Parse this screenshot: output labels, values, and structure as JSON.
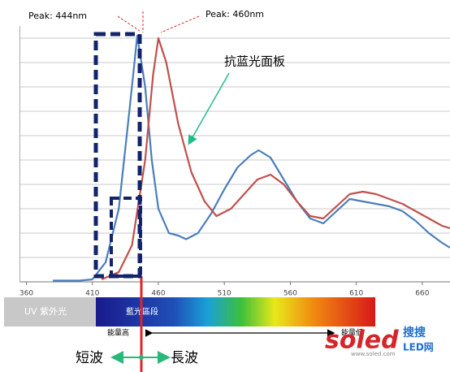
{
  "chart_data": {
    "type": "line",
    "xlim": [
      355,
      681
    ],
    "xticks": [
      360,
      410,
      460,
      510,
      560,
      610,
      660
    ],
    "ylim": [
      0,
      10.5
    ],
    "yticks": [
      0,
      1,
      2,
      3,
      4,
      5,
      6,
      7,
      8,
      9,
      10
    ],
    "grid": true,
    "series": [
      {
        "name": "Peak: 444nm",
        "color": "#4a7ebb",
        "x": [
          380,
          400,
          410,
          420,
          430,
          438,
          444,
          450,
          455,
          460,
          468,
          475,
          481,
          490,
          500,
          510,
          520,
          530,
          536,
          545,
          555,
          565,
          575,
          585,
          595,
          605,
          615,
          625,
          635,
          645,
          655,
          665,
          675,
          681
        ],
        "values": [
          0.05,
          0.05,
          0.1,
          0.8,
          3,
          7,
          10.1,
          8,
          5,
          3,
          2,
          1.9,
          1.75,
          2.0,
          2.8,
          3.8,
          4.7,
          5.2,
          5.4,
          5.1,
          4.2,
          3.3,
          2.6,
          2.4,
          2.9,
          3.4,
          3.3,
          3.2,
          3.1,
          2.9,
          2.5,
          2.0,
          1.6,
          1.4
        ]
      },
      {
        "name": "Peak: 460nm",
        "color": "#c0504d",
        "x": [
          417,
          430,
          440,
          450,
          456,
          460,
          466,
          475,
          485,
          495,
          504,
          515,
          525,
          535,
          545,
          555,
          565,
          575,
          585,
          595,
          605,
          615,
          625,
          635,
          645,
          655,
          665,
          675,
          681
        ],
        "values": [
          0.1,
          0.4,
          1.5,
          5,
          8.5,
          10,
          9,
          6.5,
          4.5,
          3.3,
          2.7,
          3.0,
          3.6,
          4.2,
          4.4,
          4.0,
          3.3,
          2.7,
          2.6,
          3.1,
          3.6,
          3.7,
          3.6,
          3.4,
          3.2,
          2.9,
          2.6,
          2.3,
          2.2
        ]
      }
    ],
    "annotations": {
      "panel": "抗蓝光面板",
      "uv": "UV 紫外光",
      "blue_zone": "藍光區段",
      "high_energy": "能量高",
      "low_energy": "能量低",
      "short_wave": "短波",
      "long_wave": "長波"
    },
    "watermark": {
      "brand": "soled",
      "cn": "搜搜",
      "led": "LED网",
      "url": "www.soled.com"
    }
  }
}
